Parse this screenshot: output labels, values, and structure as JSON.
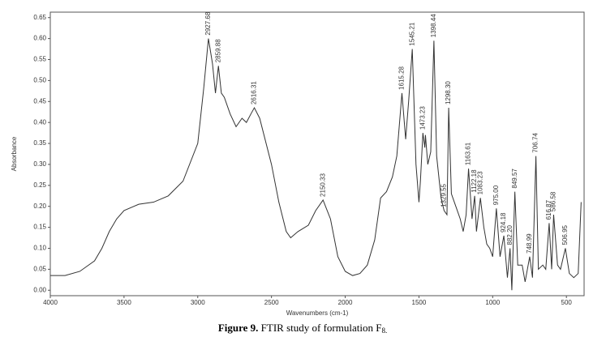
{
  "chart_data": {
    "type": "line",
    "xlabel": "Wavenumbers (cm-1)",
    "ylabel": "Absorbance",
    "caption": {
      "label": "Figure 9.",
      "text": " FTIR study of formulation F",
      "subscript": "8."
    },
    "color": "#333333",
    "xlim": [
      4000,
      380
    ],
    "ylim": [
      -0.013,
      0.663
    ],
    "xticks": [
      4000,
      3500,
      3000,
      2500,
      2000,
      1500,
      1000,
      500
    ],
    "yticks": [
      {
        "value": 0,
        "label": "0.00"
      },
      {
        "value": 0.05,
        "label": "0.05"
      },
      {
        "value": 0.1,
        "label": "0.10"
      },
      {
        "value": 0.15,
        "label": "0.15"
      },
      {
        "value": 0.2,
        "label": "0.20"
      },
      {
        "value": 0.25,
        "label": "0.25"
      },
      {
        "value": 0.3,
        "label": "0.30"
      },
      {
        "value": 0.35,
        "label": "0.35"
      },
      {
        "value": 0.4,
        "label": "0.40"
      },
      {
        "value": 0.45,
        "label": "0.45"
      },
      {
        "value": 0.5,
        "label": "0.50"
      },
      {
        "value": 0.55,
        "label": "0.55"
      },
      {
        "value": 0.6,
        "label": "0.60"
      },
      {
        "value": 0.65,
        "label": "0.65"
      }
    ],
    "x": [
      4000,
      3900,
      3800,
      3700,
      3650,
      3600,
      3550,
      3500,
      3400,
      3300,
      3200,
      3100,
      3000,
      2960,
      2927.68,
      2900,
      2880,
      2859.88,
      2840,
      2820,
      2780,
      2740,
      2700,
      2670,
      2640,
      2616.31,
      2580,
      2500,
      2450,
      2400,
      2370,
      2320,
      2250,
      2200,
      2150.33,
      2100,
      2050,
      2000,
      1950,
      1900,
      1850,
      1800,
      1760,
      1720,
      1680,
      1650,
      1615.28,
      1590,
      1570,
      1545.21,
      1520,
      1500,
      1490,
      1473.23,
      1460,
      1456,
      1440,
      1420,
      1398.44,
      1380,
      1350,
      1329.55,
      1310,
      1298.3,
      1280,
      1250,
      1220,
      1200,
      1180,
      1163.61,
      1140,
      1122.18,
      1110,
      1083.23,
      1060,
      1040,
      1020,
      1000,
      975,
      950,
      924.18,
      900,
      882.2,
      870,
      849.57,
      830,
      800,
      780,
      748.99,
      730,
      706.74,
      690,
      660,
      640,
      616.87,
      600,
      586.58,
      560,
      540,
      506.95,
      480,
      450,
      420,
      400
    ],
    "values": [
      0.035,
      0.035,
      0.045,
      0.07,
      0.1,
      0.14,
      0.17,
      0.19,
      0.205,
      0.21,
      0.225,
      0.26,
      0.35,
      0.48,
      0.6,
      0.54,
      0.47,
      0.535,
      0.47,
      0.46,
      0.42,
      0.39,
      0.41,
      0.4,
      0.42,
      0.435,
      0.41,
      0.3,
      0.21,
      0.14,
      0.125,
      0.14,
      0.155,
      0.19,
      0.215,
      0.17,
      0.08,
      0.045,
      0.035,
      0.04,
      0.06,
      0.12,
      0.22,
      0.235,
      0.27,
      0.32,
      0.47,
      0.36,
      0.45,
      0.575,
      0.3,
      0.21,
      0.26,
      0.375,
      0.34,
      0.37,
      0.3,
      0.33,
      0.595,
      0.32,
      0.22,
      0.19,
      0.18,
      0.435,
      0.23,
      0.2,
      0.17,
      0.14,
      0.18,
      0.29,
      0.17,
      0.225,
      0.14,
      0.22,
      0.15,
      0.11,
      0.1,
      0.08,
      0.195,
      0.08,
      0.13,
      0.03,
      0.1,
      0.0,
      0.235,
      0.06,
      0.06,
      0.02,
      0.08,
      0.03,
      0.32,
      0.05,
      0.06,
      0.05,
      0.16,
      0.05,
      0.18,
      0.06,
      0.05,
      0.1,
      0.04,
      0.03,
      0.04,
      0.21
    ],
    "peaks": [
      {
        "x": 2927.68,
        "y": 0.6,
        "label": "2927.68"
      },
      {
        "x": 2859.88,
        "y": 0.535,
        "label": "2859.88"
      },
      {
        "x": 2616.31,
        "y": 0.435,
        "label": "2616.31"
      },
      {
        "x": 2150.33,
        "y": 0.215,
        "label": "2150.33"
      },
      {
        "x": 1615.28,
        "y": 0.47,
        "label": "1615.28"
      },
      {
        "x": 1545.21,
        "y": 0.575,
        "label": "1545.21"
      },
      {
        "x": 1473.23,
        "y": 0.375,
        "label": "1473.23"
      },
      {
        "x": 1398.44,
        "y": 0.595,
        "label": "1398.44"
      },
      {
        "x": 1329.55,
        "y": 0.19,
        "label": "1329.55"
      },
      {
        "x": 1298.3,
        "y": 0.435,
        "label": "1298.30"
      },
      {
        "x": 1163.61,
        "y": 0.29,
        "label": "1163.61"
      },
      {
        "x": 1122.18,
        "y": 0.225,
        "label": "1122.18"
      },
      {
        "x": 1083.23,
        "y": 0.22,
        "label": "1083.23"
      },
      {
        "x": 975,
        "y": 0.195,
        "label": "975.00"
      },
      {
        "x": 924.18,
        "y": 0.13,
        "label": "924.18"
      },
      {
        "x": 882.2,
        "y": 0.1,
        "label": "882.20"
      },
      {
        "x": 849.57,
        "y": 0.235,
        "label": "849.57"
      },
      {
        "x": 748.99,
        "y": 0.08,
        "label": "748.99"
      },
      {
        "x": 706.74,
        "y": 0.32,
        "label": "706.74"
      },
      {
        "x": 616.87,
        "y": 0.16,
        "label": "616.87"
      },
      {
        "x": 586.58,
        "y": 0.18,
        "label": "586.58"
      },
      {
        "x": 506.95,
        "y": 0.1,
        "label": "506.95"
      }
    ]
  }
}
